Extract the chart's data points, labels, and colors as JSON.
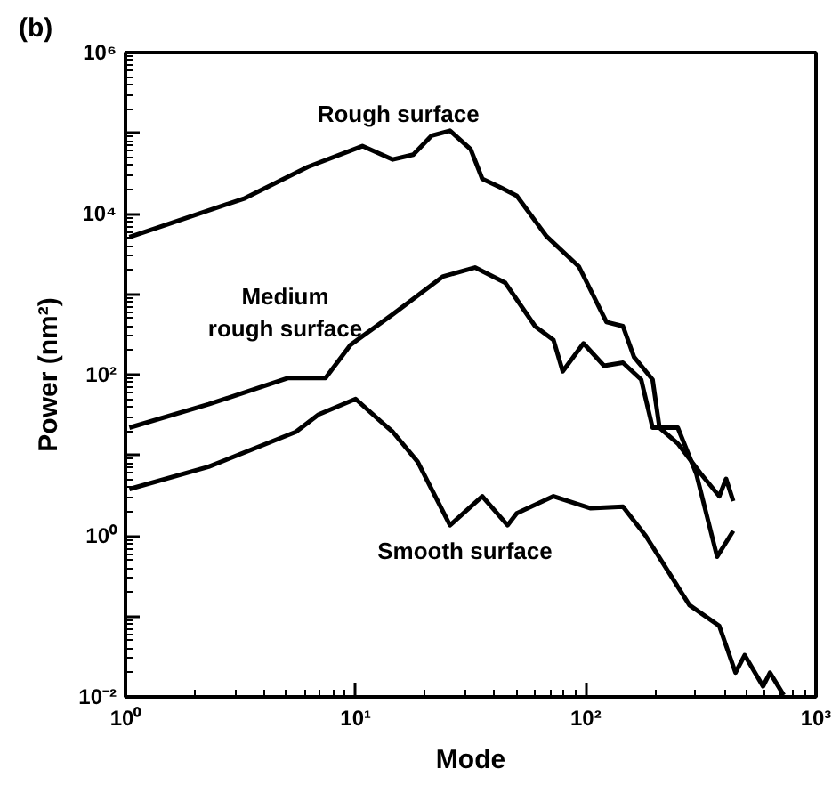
{
  "chart_data": {
    "type": "line",
    "xlabel": "Mode",
    "ylabel": "Power (nm²)",
    "log": "xy",
    "grid": false,
    "marker": "none",
    "line_style": "solid",
    "xlim": [
      1,
      1000
    ],
    "ylim": [
      0.01,
      1000000
    ],
    "xticks": [
      {
        "value": 1,
        "label": "10⁰"
      },
      {
        "value": 10,
        "label": "10¹"
      },
      {
        "value": 100,
        "label": "10²"
      },
      {
        "value": 1000,
        "label": "10³"
      }
    ],
    "yticks": [
      {
        "value": 0.01,
        "label": "10⁻²"
      },
      {
        "value": 0.1,
        "label": null
      },
      {
        "value": 1,
        "label": "10⁰"
      },
      {
        "value": 10,
        "label": null
      },
      {
        "value": 100,
        "label": "10²"
      },
      {
        "value": 1000,
        "label": null
      },
      {
        "value": 10000,
        "label": "10⁴"
      },
      {
        "value": 100000,
        "label": null
      },
      {
        "value": 1000000,
        "label": "10⁶"
      }
    ],
    "annotations": [
      "(b)",
      "Rough surface",
      "Medium\nrough surface",
      "Smooth surface"
    ],
    "series": [
      {
        "color": "#000000",
        "x": [
          1.04,
          3.3,
          6.2,
          10.7,
          14.5,
          17.8,
          21.4,
          25.7,
          31.6,
          35.5,
          42.7,
          50.1,
          67.6,
          93.3,
          123,
          145,
          162,
          195,
          209,
          251,
          316,
          380,
          407,
          437
        ],
        "values": [
          5100,
          15500,
          38000,
          69000,
          47000,
          54000,
          93000,
          107000,
          63000,
          27000,
          21000,
          16600,
          5200,
          2200,
          450,
          400,
          166,
          87,
          22,
          14,
          5.9,
          3.1,
          5.1,
          2.7
        ]
      },
      {
        "color": "#000000",
        "x": [
          1.04,
          2.3,
          5.1,
          7.4,
          9.5,
          14.5,
          17.4,
          24,
          33,
          44.7,
          60.3,
          72.4,
          79.4,
          97.7,
          120,
          145,
          174,
          195,
          251,
          302,
          372,
          437
        ],
        "values": [
          22,
          43,
          91,
          91,
          234,
          562,
          832,
          1660,
          2140,
          1380,
          398,
          269,
          110,
          245,
          129,
          141,
          87,
          22,
          22,
          5.9,
          0.55,
          1.15
        ]
      },
      {
        "color": "#000000",
        "x": [
          1.04,
          2.3,
          5.5,
          6.9,
          10,
          12.9,
          14.5,
          18.6,
          25.7,
          35.5,
          45.7,
          50.1,
          72.4,
          105,
          145,
          182,
          282,
          380,
          447,
          490,
          589,
          631,
          724
        ],
        "values": [
          3.8,
          7.2,
          19.5,
          32,
          50,
          26,
          19.5,
          8.3,
          1.35,
          3.1,
          1.35,
          1.9,
          3.1,
          2.2,
          2.3,
          1.0,
          0.138,
          0.076,
          0.02,
          0.033,
          0.0135,
          0.02,
          0.0105
        ]
      }
    ]
  }
}
